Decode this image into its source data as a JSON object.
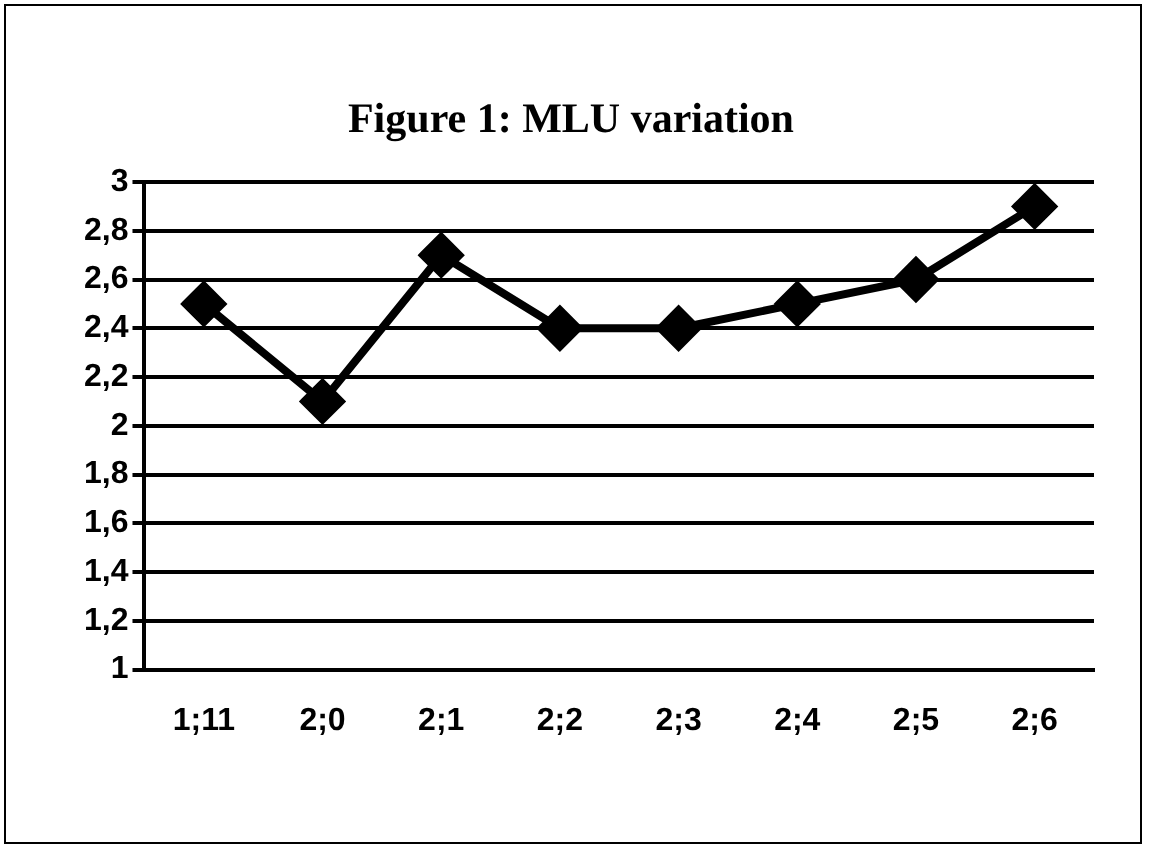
{
  "chart_data": {
    "type": "line",
    "title": "Figure 1: MLU variation",
    "categories": [
      "1;11",
      "2;0",
      "2;1",
      "2;2",
      "2;3",
      "2;4",
      "2;5",
      "2;6"
    ],
    "series": [
      {
        "color": "#000000",
        "values": [
          2.5,
          2.1,
          2.7,
          2.4,
          2.4,
          2.5,
          2.6,
          2.9
        ]
      }
    ],
    "ylim": [
      1,
      3
    ],
    "yticks": [
      {
        "value": 1,
        "label": "1"
      },
      {
        "value": 1.2,
        "label": "1,2"
      },
      {
        "value": 1.4,
        "label": "1,4"
      },
      {
        "value": 1.6,
        "label": "1,6"
      },
      {
        "value": 1.8,
        "label": "1,8"
      },
      {
        "value": 2,
        "label": "2"
      },
      {
        "value": 2.2,
        "label": "2,2"
      },
      {
        "value": 2.4,
        "label": "2,4"
      },
      {
        "value": 2.6,
        "label": "2,6"
      },
      {
        "value": 2.8,
        "label": "2,8"
      },
      {
        "value": 3,
        "label": "3"
      }
    ],
    "grid": "y",
    "legend": false,
    "marker": "diamond",
    "line_style": "solid"
  }
}
